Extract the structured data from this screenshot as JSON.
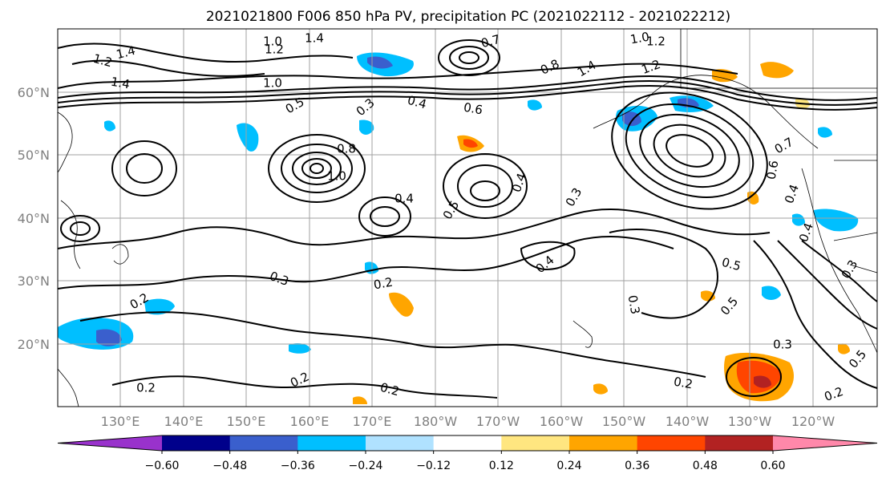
{
  "title": "2021021800 F006 850 hPa PV, precipitation PC (2021022112 - 2021022212)",
  "map": {
    "lat_labels": [
      "60°N",
      "50°N",
      "40°N",
      "30°N",
      "20°N"
    ],
    "lon_labels": [
      "130°E",
      "140°E",
      "150°E",
      "160°E",
      "170°E",
      "180°W",
      "170°W",
      "160°W",
      "150°W",
      "140°W",
      "130°W",
      "120°W"
    ],
    "contour_labels": [
      "1.4",
      "1.2",
      "1.0",
      "1.2",
      "1.4",
      "1.4",
      "1.0",
      "0.7",
      "1.0",
      "1.2",
      "0.8",
      "1.4",
      "1.2",
      "0.5",
      "0.3",
      "0.4",
      "0.6",
      "0.8",
      "1.0",
      "0.4",
      "0.5",
      "0.4",
      "0.3",
      "0.7",
      "0.6",
      "0.4",
      "0.5",
      "0.2",
      "0.3",
      "0.4",
      "0.5",
      "0.2",
      "0.2",
      "0.2",
      "0.3",
      "0.2",
      "0.3",
      "0.4",
      "0.3",
      "0.2",
      "0.5",
      "0.2"
    ]
  },
  "colorbar": {
    "tick_labels": [
      "−0.60",
      "−0.48",
      "−0.36",
      "−0.24",
      "−0.12",
      "0.12",
      "0.24",
      "0.36",
      "0.48",
      "0.60"
    ],
    "colors": [
      "#9932cc",
      "#00008b",
      "#3a5fcd",
      "#00bfff",
      "#b0e2ff",
      "#ffffff",
      "#ffe680",
      "#ffa500",
      "#ff4500",
      "#b22222",
      "#ff88aa"
    ]
  }
}
